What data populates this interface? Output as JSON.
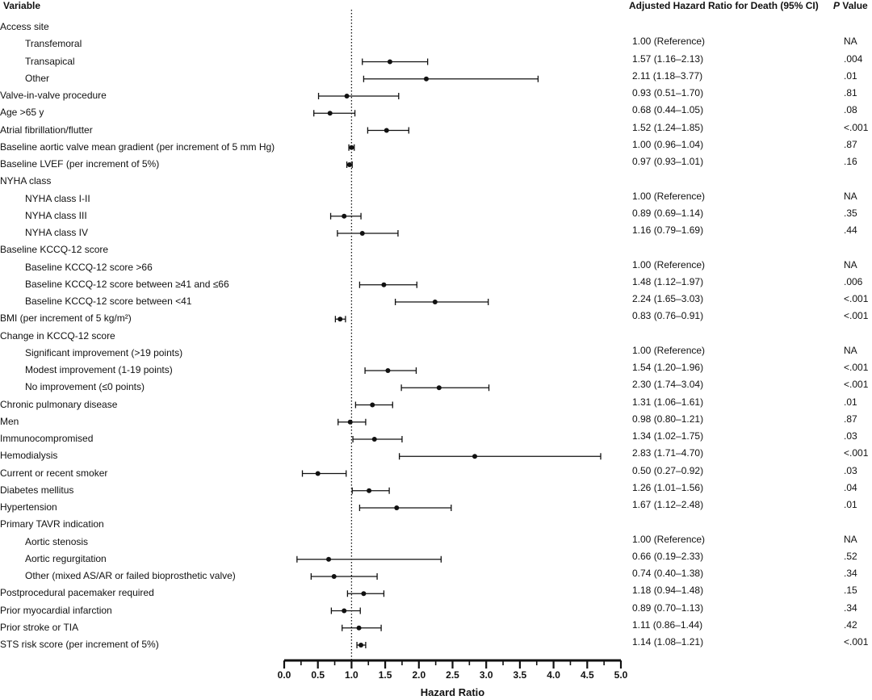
{
  "headers": {
    "variable": "Variable",
    "hr": "Adjusted Hazard Ratio for Death (95% CI)",
    "p_italic": "P",
    "p_rest": " Value"
  },
  "chart_data": {
    "type": "forest",
    "xlabel": "Hazard Ratio",
    "xlim": [
      0,
      5
    ],
    "xticks": [
      "0.0",
      "0.5",
      "1.0",
      "1.5",
      "2.0",
      "2.5",
      "3.0",
      "3.5",
      "4.0",
      "4.5",
      "5.0"
    ],
    "reference_line": 1.0,
    "rows": [
      {
        "label": "Access site",
        "indent": 0,
        "hr_text": "",
        "p": ""
      },
      {
        "label": "Transfemoral",
        "indent": 1,
        "hr_text": "1.00 (Reference)",
        "p": "NA"
      },
      {
        "label": "Transapical",
        "indent": 1,
        "hr_text": "1.57 (1.16–2.13)",
        "p": ".004",
        "est": 1.57,
        "lo": 1.16,
        "hi": 2.13
      },
      {
        "label": "Other",
        "indent": 1,
        "hr_text": "2.11 (1.18–3.77)",
        "p": ".01",
        "est": 2.11,
        "lo": 1.18,
        "hi": 3.77
      },
      {
        "label": "Valve-in-valve procedure",
        "indent": 0,
        "hr_text": "0.93 (0.51–1.70)",
        "p": ".81",
        "est": 0.93,
        "lo": 0.51,
        "hi": 1.7
      },
      {
        "label": "Age >65 y",
        "indent": 0,
        "hr_text": "0.68 (0.44–1.05)",
        "p": ".08",
        "est": 0.68,
        "lo": 0.44,
        "hi": 1.05
      },
      {
        "label": "Atrial fibrillation/flutter",
        "indent": 0,
        "hr_text": "1.52 (1.24–1.85)",
        "p": "<.001",
        "est": 1.52,
        "lo": 1.24,
        "hi": 1.85
      },
      {
        "label": "Baseline aortic valve mean gradient (per increment of 5 mm Hg)",
        "indent": 0,
        "hr_text": "1.00 (0.96–1.04)",
        "p": ".87",
        "est": 1.0,
        "lo": 0.96,
        "hi": 1.04
      },
      {
        "label": "Baseline LVEF (per increment of 5%)",
        "indent": 0,
        "hr_text": "0.97 (0.93–1.01)",
        "p": ".16",
        "est": 0.97,
        "lo": 0.93,
        "hi": 1.01
      },
      {
        "label": "NYHA class",
        "indent": 0,
        "hr_text": "",
        "p": ""
      },
      {
        "label": "NYHA class I-II",
        "indent": 1,
        "hr_text": "1.00 (Reference)",
        "p": "NA"
      },
      {
        "label": "NYHA class III",
        "indent": 1,
        "hr_text": "0.89 (0.69–1.14)",
        "p": ".35",
        "est": 0.89,
        "lo": 0.69,
        "hi": 1.14
      },
      {
        "label": "NYHA class IV",
        "indent": 1,
        "hr_text": "1.16 (0.79–1.69)",
        "p": ".44",
        "est": 1.16,
        "lo": 0.79,
        "hi": 1.69
      },
      {
        "label": "Baseline KCCQ-12 score",
        "indent": 0,
        "hr_text": "",
        "p": ""
      },
      {
        "label": "Baseline KCCQ-12 score >66",
        "indent": 1,
        "hr_text": "1.00 (Reference)",
        "p": "NA"
      },
      {
        "label": "Baseline KCCQ-12 score between ≥41 and ≤66",
        "indent": 1,
        "hr_text": "1.48 (1.12–1.97)",
        "p": ".006",
        "est": 1.48,
        "lo": 1.12,
        "hi": 1.97
      },
      {
        "label": "Baseline KCCQ-12 score between <41",
        "indent": 1,
        "hr_text": "2.24 (1.65–3.03)",
        "p": "<.001",
        "est": 2.24,
        "lo": 1.65,
        "hi": 3.03
      },
      {
        "label": "BMI (per increment of 5 kg/m²)",
        "indent": 0,
        "hr_text": "0.83 (0.76–0.91)",
        "p": "<.001",
        "est": 0.83,
        "lo": 0.76,
        "hi": 0.91
      },
      {
        "label": "Change in KCCQ-12 score",
        "indent": 0,
        "hr_text": "",
        "p": ""
      },
      {
        "label": "Significant improvement (>19 points)",
        "indent": 1,
        "hr_text": "1.00 (Reference)",
        "p": "NA"
      },
      {
        "label": "Modest improvement (1-19 points)",
        "indent": 1,
        "hr_text": "1.54 (1.20–1.96)",
        "p": "<.001",
        "est": 1.54,
        "lo": 1.2,
        "hi": 1.96
      },
      {
        "label": "No improvement (≤0 points)",
        "indent": 1,
        "hr_text": "2.30 (1.74–3.04)",
        "p": "<.001",
        "est": 2.3,
        "lo": 1.74,
        "hi": 3.04
      },
      {
        "label": "Chronic pulmonary disease",
        "indent": 0,
        "hr_text": "1.31 (1.06–1.61)",
        "p": ".01",
        "est": 1.31,
        "lo": 1.06,
        "hi": 1.61
      },
      {
        "label": "Men",
        "indent": 0,
        "hr_text": "0.98 (0.80–1.21)",
        "p": ".87",
        "est": 0.98,
        "lo": 0.8,
        "hi": 1.21
      },
      {
        "label": "Immunocompromised",
        "indent": 0,
        "hr_text": "1.34 (1.02–1.75)",
        "p": ".03",
        "est": 1.34,
        "lo": 1.02,
        "hi": 1.75
      },
      {
        "label": "Hemodialysis",
        "indent": 0,
        "hr_text": "2.83 (1.71–4.70)",
        "p": "<.001",
        "est": 2.83,
        "lo": 1.71,
        "hi": 4.7
      },
      {
        "label": "Current or recent smoker",
        "indent": 0,
        "hr_text": "0.50 (0.27–0.92)",
        "p": ".03",
        "est": 0.5,
        "lo": 0.27,
        "hi": 0.92
      },
      {
        "label": "Diabetes mellitus",
        "indent": 0,
        "hr_text": "1.26 (1.01–1.56)",
        "p": ".04",
        "est": 1.26,
        "lo": 1.01,
        "hi": 1.56
      },
      {
        "label": "Hypertension",
        "indent": 0,
        "hr_text": "1.67 (1.12–2.48)",
        "p": ".01",
        "est": 1.67,
        "lo": 1.12,
        "hi": 2.48
      },
      {
        "label": "Primary TAVR indication",
        "indent": 0,
        "hr_text": "",
        "p": ""
      },
      {
        "label": "Aortic stenosis",
        "indent": 1,
        "hr_text": "1.00 (Reference)",
        "p": "NA"
      },
      {
        "label": "Aortic regurgitation",
        "indent": 1,
        "hr_text": "0.66 (0.19–2.33)",
        "p": ".52",
        "est": 0.66,
        "lo": 0.19,
        "hi": 2.33
      },
      {
        "label": "Other (mixed AS/AR or failed bioprosthetic valve)",
        "indent": 1,
        "hr_text": "0.74 (0.40–1.38)",
        "p": ".34",
        "est": 0.74,
        "lo": 0.4,
        "hi": 1.38
      },
      {
        "label": "Postprocedural pacemaker required",
        "indent": 0,
        "hr_text": "1.18 (0.94–1.48)",
        "p": ".15",
        "est": 1.18,
        "lo": 0.94,
        "hi": 1.48
      },
      {
        "label": "Prior myocardial infarction",
        "indent": 0,
        "hr_text": "0.89 (0.70–1.13)",
        "p": ".34",
        "est": 0.89,
        "lo": 0.7,
        "hi": 1.13
      },
      {
        "label": "Prior stroke or TIA",
        "indent": 0,
        "hr_text": "1.11 (0.86–1.44)",
        "p": ".42",
        "est": 1.11,
        "lo": 0.86,
        "hi": 1.44
      },
      {
        "label": "STS risk score (per increment of 5%)",
        "indent": 0,
        "hr_text": "1.14 (1.08–1.21)",
        "p": "<.001",
        "est": 1.14,
        "lo": 1.08,
        "hi": 1.21
      }
    ]
  }
}
